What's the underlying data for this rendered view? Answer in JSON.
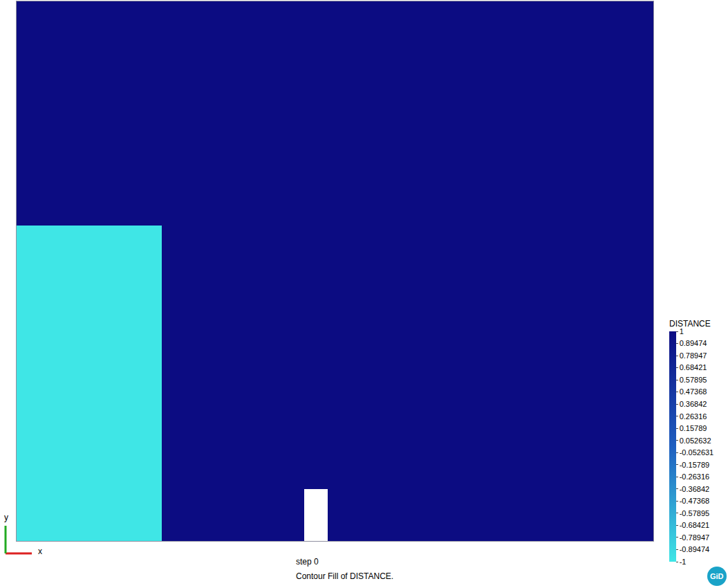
{
  "chart_data": {
    "type": "heatmap",
    "x_edges": [
      0,
      0.296,
      0.587,
      0.635,
      1.3
    ],
    "y_edges": [
      0,
      0.096,
      0.585,
      1.0
    ],
    "cells": [
      [
        -1,
        1,
        null,
        1
      ],
      [
        -1,
        1,
        1,
        1
      ],
      [
        1,
        1,
        1,
        1
      ]
    ],
    "xlim": [
      0,
      1.3
    ],
    "ylim": [
      0,
      1
    ],
    "tick_labels": false,
    "colorbar": {
      "title": "DISTANCE",
      "range": [
        -1,
        1
      ],
      "ticks": [
        1,
        0.89474,
        0.78947,
        0.68421,
        0.57895,
        0.47368,
        0.36842,
        0.26316,
        0.15789,
        0.052632,
        -0.052631,
        -0.15789,
        -0.26316,
        -0.36842,
        -0.47368,
        -0.57895,
        -0.68421,
        -0.78947,
        -0.89474,
        -1
      ]
    },
    "annotations": [
      "step 0",
      "Contour Fill of DISTANCE."
    ],
    "axis_labels": {
      "x": "x",
      "y": "y"
    },
    "logo": "GiD"
  }
}
